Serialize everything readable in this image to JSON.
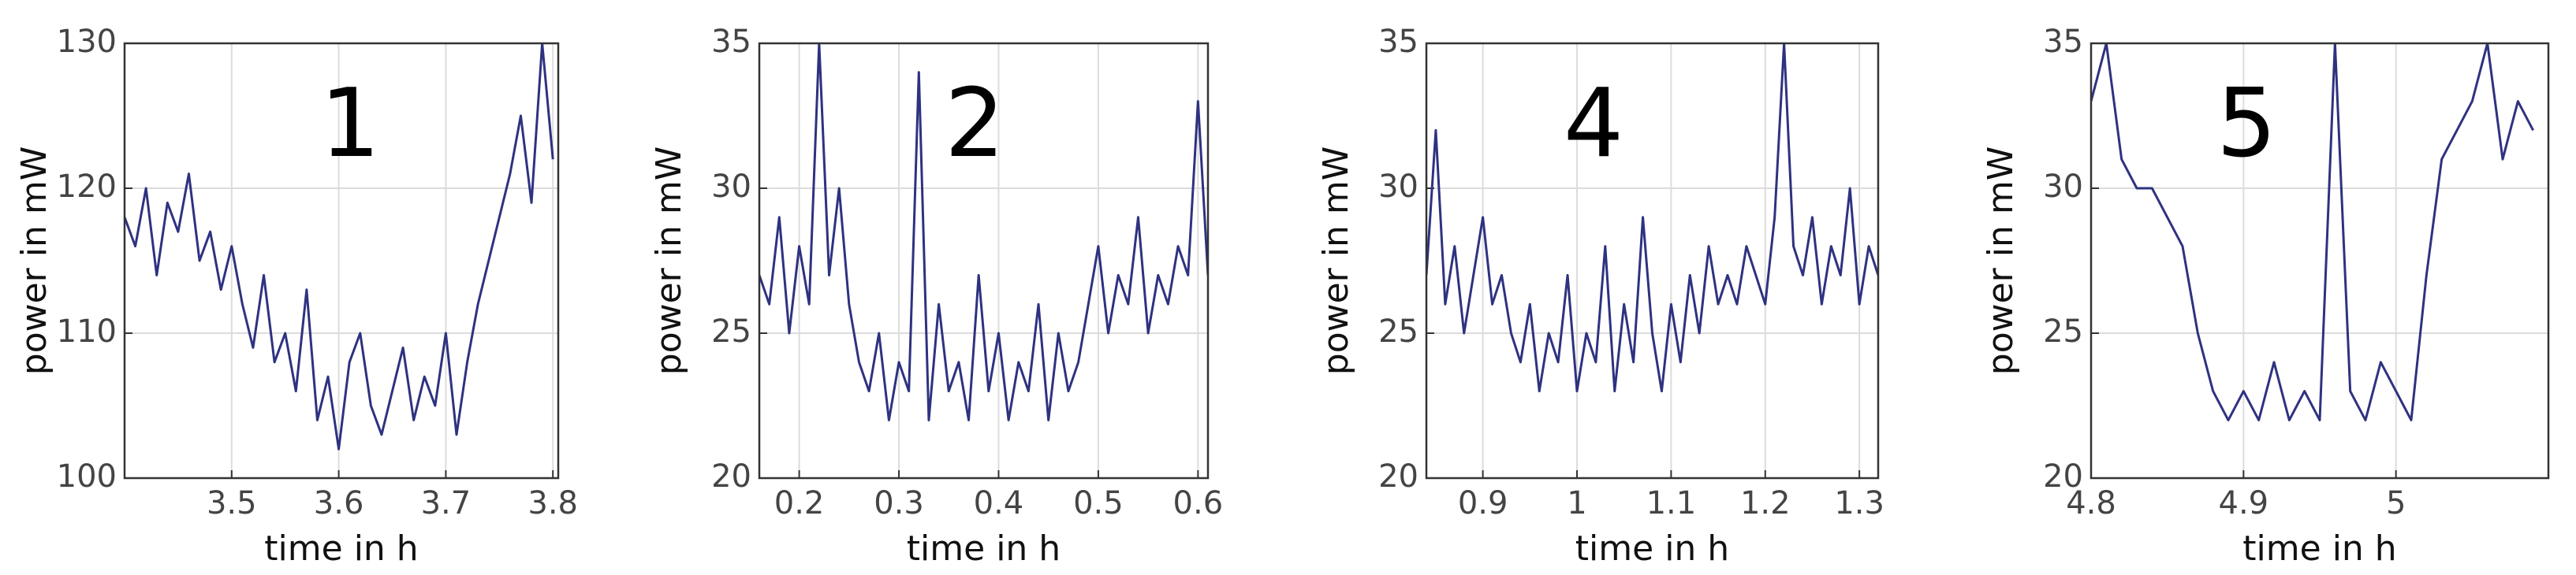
{
  "chart_data": [
    {
      "type": "line",
      "annotation": "1",
      "xlabel": "time in h",
      "ylabel": "power in mW",
      "xlim": [
        3.4,
        3.805
      ],
      "ylim": [
        100,
        130
      ],
      "xticks": [
        3.5,
        3.6,
        3.7,
        3.8
      ],
      "yticks": [
        100,
        110,
        120,
        130
      ],
      "grid": true,
      "x": [
        3.4,
        3.41,
        3.42,
        3.43,
        3.44,
        3.45,
        3.46,
        3.47,
        3.48,
        3.49,
        3.5,
        3.51,
        3.52,
        3.53,
        3.54,
        3.55,
        3.56,
        3.57,
        3.58,
        3.59,
        3.6,
        3.61,
        3.62,
        3.63,
        3.64,
        3.65,
        3.66,
        3.67,
        3.68,
        3.69,
        3.7,
        3.71,
        3.72,
        3.73,
        3.74,
        3.75,
        3.76,
        3.77,
        3.78,
        3.79,
        3.8
      ],
      "series": [
        {
          "color": "#2e3280",
          "values": [
            118,
            116,
            120,
            114,
            119,
            117,
            121,
            115,
            117,
            113,
            116,
            112,
            109,
            114,
            108,
            110,
            106,
            113,
            104,
            107,
            102,
            108,
            110,
            105,
            103,
            106,
            109,
            104,
            107,
            105,
            110,
            103,
            108,
            112,
            115,
            118,
            121,
            125,
            119,
            130,
            122
          ]
        }
      ]
    },
    {
      "type": "line",
      "annotation": "2",
      "xlabel": "time in h",
      "ylabel": "power in mW",
      "xlim": [
        0.16,
        0.61
      ],
      "ylim": [
        20,
        35
      ],
      "xticks": [
        0.2,
        0.3,
        0.4,
        0.5,
        0.6
      ],
      "yticks": [
        20,
        25,
        30,
        35
      ],
      "grid": true,
      "x": [
        0.16,
        0.17,
        0.18,
        0.19,
        0.2,
        0.21,
        0.22,
        0.23,
        0.24,
        0.25,
        0.26,
        0.27,
        0.28,
        0.29,
        0.3,
        0.31,
        0.32,
        0.33,
        0.34,
        0.35,
        0.36,
        0.37,
        0.38,
        0.39,
        0.4,
        0.41,
        0.42,
        0.43,
        0.44,
        0.45,
        0.46,
        0.47,
        0.48,
        0.49,
        0.5,
        0.51,
        0.52,
        0.53,
        0.54,
        0.55,
        0.56,
        0.57,
        0.58,
        0.59,
        0.6,
        0.61
      ],
      "series": [
        {
          "color": "#2e3280",
          "values": [
            27,
            26,
            29,
            25,
            28,
            26,
            35,
            27,
            30,
            26,
            24,
            23,
            25,
            22,
            24,
            23,
            34,
            22,
            26,
            23,
            24,
            22,
            27,
            23,
            25,
            22,
            24,
            23,
            26,
            22,
            25,
            23,
            24,
            26,
            28,
            25,
            27,
            26,
            29,
            25,
            27,
            26,
            28,
            27,
            33,
            27
          ]
        }
      ]
    },
    {
      "type": "line",
      "annotation": "4",
      "xlabel": "time in h",
      "ylabel": "power in mW",
      "xlim": [
        0.84,
        1.32
      ],
      "ylim": [
        20,
        35
      ],
      "xticks": [
        0.9,
        1,
        1.1,
        1.2,
        1.3
      ],
      "yticks": [
        20,
        25,
        30,
        35
      ],
      "grid": true,
      "x": [
        0.84,
        0.85,
        0.86,
        0.87,
        0.88,
        0.89,
        0.9,
        0.91,
        0.92,
        0.93,
        0.94,
        0.95,
        0.96,
        0.97,
        0.98,
        0.99,
        1,
        1.01,
        1.02,
        1.03,
        1.04,
        1.05,
        1.06,
        1.07,
        1.08,
        1.09,
        1.1,
        1.11,
        1.12,
        1.13,
        1.14,
        1.15,
        1.16,
        1.17,
        1.18,
        1.19,
        1.2,
        1.21,
        1.22,
        1.23,
        1.24,
        1.25,
        1.26,
        1.27,
        1.28,
        1.29,
        1.3,
        1.31,
        1.32
      ],
      "series": [
        {
          "color": "#2e3280",
          "values": [
            27,
            32,
            26,
            28,
            25,
            27,
            29,
            26,
            27,
            25,
            24,
            26,
            23,
            25,
            24,
            27,
            23,
            25,
            24,
            28,
            23,
            26,
            24,
            29,
            25,
            23,
            26,
            24,
            27,
            25,
            28,
            26,
            27,
            26,
            28,
            27,
            26,
            29,
            35,
            28,
            27,
            29,
            26,
            28,
            27,
            30,
            26,
            28,
            27
          ]
        }
      ]
    },
    {
      "type": "line",
      "annotation": "5",
      "xlabel": "time in h",
      "ylabel": "power in mW",
      "xlim": [
        4.8,
        5.1
      ],
      "ylim": [
        20,
        35
      ],
      "xticks": [
        4.8,
        4.9,
        5
      ],
      "yticks": [
        20,
        25,
        30,
        35
      ],
      "grid": true,
      "x": [
        4.8,
        4.81,
        4.82,
        4.83,
        4.84,
        4.85,
        4.86,
        4.87,
        4.88,
        4.89,
        4.9,
        4.91,
        4.92,
        4.93,
        4.94,
        4.95,
        4.96,
        4.97,
        4.98,
        4.99,
        5,
        5.01,
        5.02,
        5.03,
        5.04,
        5.05,
        5.06,
        5.07,
        5.08,
        5.09
      ],
      "series": [
        {
          "color": "#2e3280",
          "values": [
            33,
            35,
            31,
            30,
            30,
            29,
            28,
            25,
            23,
            22,
            23,
            22,
            24,
            22,
            23,
            22,
            35,
            23,
            22,
            24,
            23,
            22,
            27,
            31,
            32,
            33,
            35,
            31,
            33,
            32
          ]
        }
      ]
    }
  ]
}
